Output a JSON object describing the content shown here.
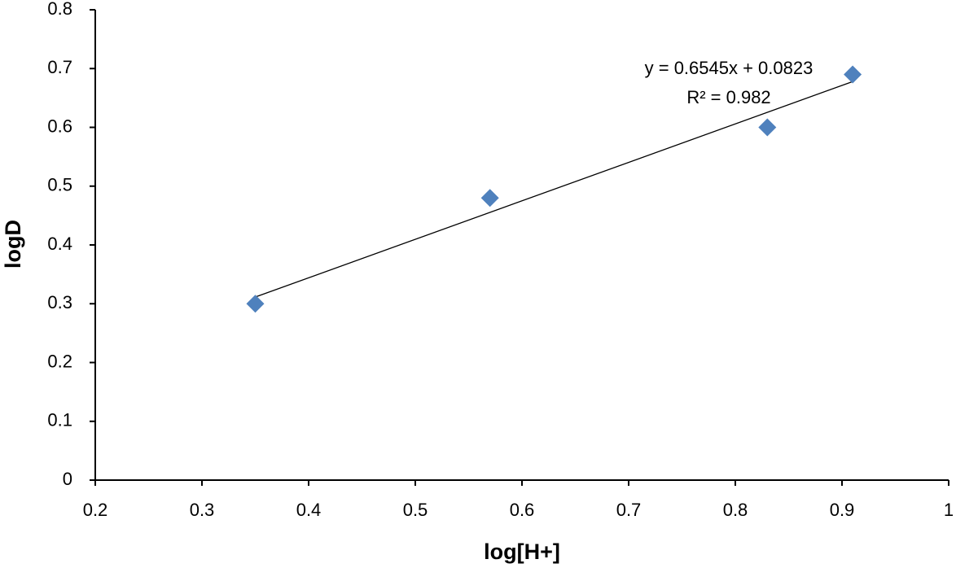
{
  "chart_data": {
    "type": "scatter",
    "x_label": "log[H+]",
    "y_label": "logD",
    "series": [
      {
        "name": "logD",
        "color": "#4f81bd",
        "x": [
          0.35,
          0.57,
          0.83,
          0.91
        ],
        "values": [
          0.3,
          0.48,
          0.6,
          0.69
        ]
      }
    ],
    "trendline": {
      "equation": "y = 0.6545x + 0.0823",
      "r_squared": "R² = 0.982",
      "slope": 0.6545,
      "intercept": 0.0823,
      "color": "#000000"
    },
    "xlim": [
      0.2,
      1
    ],
    "xticks": [
      0.2,
      0.3,
      0.4,
      0.5,
      0.6,
      0.7,
      0.8,
      0.9,
      1
    ],
    "ylim": [
      0,
      0.8
    ],
    "yticks": [
      0,
      0.1,
      0.2,
      0.3,
      0.4,
      0.5,
      0.6,
      0.7,
      0.8
    ],
    "grid": false
  }
}
